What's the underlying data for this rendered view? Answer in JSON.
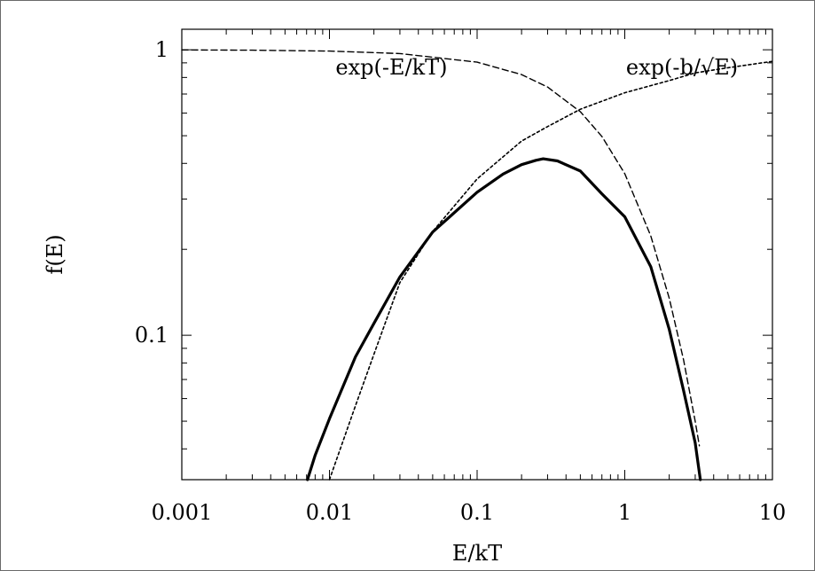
{
  "chart_data": {
    "type": "line",
    "title": "",
    "xlabel": "E/kT",
    "ylabel": "f(E)",
    "xscale": "log",
    "yscale": "log",
    "xlim": [
      0.001,
      10
    ],
    "ylim": [
      0.0312,
      1.18
    ],
    "grid": false,
    "legend": "none",
    "x_ticks": [
      {
        "value": 0.001,
        "label": "0.001"
      },
      {
        "value": 0.01,
        "label": "0.01"
      },
      {
        "value": 0.1,
        "label": "0.1"
      },
      {
        "value": 1,
        "label": "1"
      },
      {
        "value": 10,
        "label": "10"
      }
    ],
    "y_ticks": [
      {
        "value": 0.1,
        "label": "0.1"
      },
      {
        "value": 1,
        "label": "1"
      }
    ],
    "series": [
      {
        "style": "dashed",
        "x": [
          0.001,
          0.003,
          0.01,
          0.03,
          0.1,
          0.2,
          0.3,
          0.5,
          0.7,
          1.0,
          1.5,
          2.0,
          2.5,
          3.0,
          3.2
        ],
        "y": [
          0.999,
          0.997,
          0.99,
          0.97,
          0.905,
          0.819,
          0.741,
          0.607,
          0.497,
          0.368,
          0.223,
          0.135,
          0.082,
          0.05,
          0.041
        ]
      },
      {
        "style": "dotted",
        "x": [
          0.01,
          0.015,
          0.02,
          0.03,
          0.05,
          0.1,
          0.2,
          0.3,
          0.5,
          1.0,
          2.0,
          3.0,
          5.0,
          10.0
        ],
        "y": [
          0.0302,
          0.0566,
          0.0857,
          0.153,
          0.231,
          0.353,
          0.479,
          0.538,
          0.619,
          0.707,
          0.78,
          0.83,
          0.865,
          0.911
        ]
      },
      {
        "style": "solid",
        "x": [
          0.0071,
          0.008,
          0.01,
          0.015,
          0.02,
          0.03,
          0.05,
          0.1,
          0.15,
          0.2,
          0.25,
          0.28,
          0.35,
          0.5,
          0.7,
          1.0,
          1.5,
          2.0,
          2.5,
          3.0,
          3.25
        ],
        "y": [
          0.0312,
          0.038,
          0.051,
          0.084,
          0.11,
          0.16,
          0.23,
          0.317,
          0.367,
          0.396,
          0.41,
          0.415,
          0.408,
          0.376,
          0.313,
          0.26,
          0.174,
          0.105,
          0.064,
          0.042,
          0.0312
        ]
      }
    ],
    "annotations": [
      {
        "text": "exp(-E/kT)",
        "x": 0.011,
        "y": 0.82
      },
      {
        "text": "exp(-b/√E)",
        "x": 1.02,
        "y": 0.82
      }
    ]
  }
}
